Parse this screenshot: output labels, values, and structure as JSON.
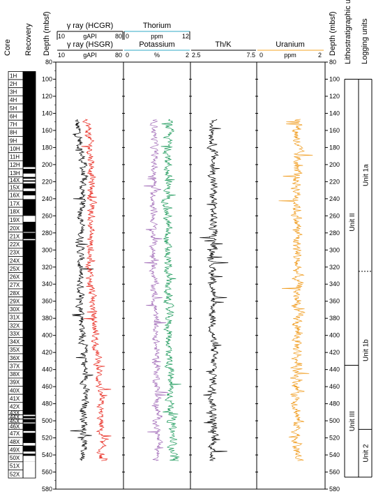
{
  "chart_data": {
    "type": "line",
    "title": "",
    "depth_label": "Depth (mbsf)",
    "depth_range": [
      80,
      580
    ],
    "depth_ticks": [
      80,
      100,
      120,
      140,
      160,
      180,
      200,
      220,
      240,
      260,
      280,
      300,
      320,
      340,
      360,
      380,
      400,
      420,
      440,
      460,
      480,
      500,
      520,
      540,
      560,
      580
    ],
    "data_depth_range": [
      147,
      547
    ],
    "columns": {
      "core": "Core",
      "recovery": "Recovery",
      "litho": "Lithostratigraphic units",
      "logging": "Logging units"
    },
    "tracks": [
      {
        "name": "gamma-ray",
        "headers": [
          {
            "label": "γ ray (HCGR)",
            "unit": "gAPI",
            "min": 10,
            "max": 80,
            "color": "#000000"
          },
          {
            "label": "γ ray (HSGR)",
            "unit": "gAPI",
            "min": 10,
            "max": 80,
            "color": "#000000"
          }
        ],
        "series": [
          {
            "label": "γ ray (HCGR)",
            "color": "#000000",
            "baseline": 38,
            "amplitude": 7,
            "trend": [
              [
                147,
                -8
              ],
              [
                200,
                0
              ],
              [
                330,
                -4
              ],
              [
                450,
                2
              ],
              [
                547,
                0
              ]
            ]
          },
          {
            "label": "γ ray (HSGR)",
            "color": "#e8261c",
            "baseline": 47,
            "amplitude": 7,
            "trend": [
              [
                147,
                -5
              ],
              [
                200,
                0
              ],
              [
                330,
                -2
              ],
              [
                450,
                8
              ],
              [
                547,
                10
              ]
            ]
          }
        ]
      },
      {
        "name": "potassium-thorium",
        "headers": [
          {
            "label": "Thorium",
            "unit": "ppm",
            "min": 0,
            "max": 12,
            "color": "#2fa8c4"
          },
          {
            "label": "Potassium",
            "unit": "%",
            "min": 0,
            "max": 2,
            "color": "#000000"
          }
        ],
        "series": [
          {
            "label": "Potassium",
            "color": "#1d9a5b",
            "baseline": 1.35,
            "amplitude": 0.22,
            "trend": [
              [
                147,
                0
              ],
              [
                300,
                -0.05
              ],
              [
                450,
                0.05
              ],
              [
                547,
                0.15
              ]
            ]
          },
          {
            "label": "Thorium",
            "color": "#a26cb8",
            "baseline": 5.6,
            "amplitude": 1.1,
            "trend": [
              [
                147,
                0
              ],
              [
                300,
                -0.3
              ],
              [
                450,
                0.4
              ],
              [
                547,
                0.6
              ]
            ]
          }
        ]
      },
      {
        "name": "th-k",
        "headers": [
          {
            "label": "Th/K",
            "unit": "",
            "min": 2.5,
            "max": 7.5,
            "color": "#000000"
          }
        ],
        "series": [
          {
            "label": "Th/K",
            "color": "#000000",
            "baseline": 4.2,
            "amplitude": 0.55,
            "trend": [
              [
                147,
                0
              ],
              [
                547,
                0
              ]
            ]
          }
        ]
      },
      {
        "name": "uranium",
        "headers": [
          {
            "label": "Uranium",
            "unit": "ppm",
            "min": 0,
            "max": 2,
            "color": "#f5a623"
          }
        ],
        "series": [
          {
            "label": "Uranium",
            "color": "#f09a1a",
            "baseline": 1.2,
            "amplitude": 0.28,
            "trend": [
              [
                147,
                0
              ],
              [
                547,
                0
              ]
            ]
          }
        ]
      }
    ],
    "cores": [
      {
        "id": "1H",
        "top": 91,
        "bottom": 100.5
      },
      {
        "id": "2H",
        "top": 100.5,
        "bottom": 110
      },
      {
        "id": "3H",
        "top": 110,
        "bottom": 119.5
      },
      {
        "id": "4H",
        "top": 119.5,
        "bottom": 129
      },
      {
        "id": "5H",
        "top": 129,
        "bottom": 138.5
      },
      {
        "id": "6H",
        "top": 138.5,
        "bottom": 148
      },
      {
        "id": "7H",
        "top": 148,
        "bottom": 157.5
      },
      {
        "id": "8H",
        "top": 157.5,
        "bottom": 167
      },
      {
        "id": "9H",
        "top": 167,
        "bottom": 176.5
      },
      {
        "id": "10H",
        "top": 176.5,
        "bottom": 186
      },
      {
        "id": "11H",
        "top": 186,
        "bottom": 195.5
      },
      {
        "id": "12H",
        "top": 195.5,
        "bottom": 205
      },
      {
        "id": "13H",
        "top": 205,
        "bottom": 214.5
      },
      {
        "id": "14X",
        "top": 214.5,
        "bottom": 222
      },
      {
        "id": "15X",
        "top": 222,
        "bottom": 231
      },
      {
        "id": "16X",
        "top": 231,
        "bottom": 240.5
      },
      {
        "id": "17X",
        "top": 240.5,
        "bottom": 250
      },
      {
        "id": "18X",
        "top": 250,
        "bottom": 260
      },
      {
        "id": "19X",
        "top": 260,
        "bottom": 269.5
      },
      {
        "id": "20X",
        "top": 269.5,
        "bottom": 279
      },
      {
        "id": "21X",
        "top": 279,
        "bottom": 288.5
      },
      {
        "id": "22X",
        "top": 288.5,
        "bottom": 298
      },
      {
        "id": "23X",
        "top": 298,
        "bottom": 307.5
      },
      {
        "id": "24X",
        "top": 307.5,
        "bottom": 317
      },
      {
        "id": "25X",
        "top": 317,
        "bottom": 326.5
      },
      {
        "id": "26X",
        "top": 326.5,
        "bottom": 336
      },
      {
        "id": "27X",
        "top": 336,
        "bottom": 345.5
      },
      {
        "id": "28X",
        "top": 345.5,
        "bottom": 355
      },
      {
        "id": "29X",
        "top": 355,
        "bottom": 364.5
      },
      {
        "id": "30X",
        "top": 364.5,
        "bottom": 374
      },
      {
        "id": "31X",
        "top": 374,
        "bottom": 383.5
      },
      {
        "id": "32X",
        "top": 383.5,
        "bottom": 393
      },
      {
        "id": "33X",
        "top": 393,
        "bottom": 402.5
      },
      {
        "id": "34X",
        "top": 402.5,
        "bottom": 412
      },
      {
        "id": "35X",
        "top": 412,
        "bottom": 421.5
      },
      {
        "id": "36X",
        "top": 421.5,
        "bottom": 431
      },
      {
        "id": "37X",
        "top": 431,
        "bottom": 440.5
      },
      {
        "id": "38X",
        "top": 440.5,
        "bottom": 450
      },
      {
        "id": "39X",
        "top": 450,
        "bottom": 459.5
      },
      {
        "id": "40X",
        "top": 459.5,
        "bottom": 469
      },
      {
        "id": "41X",
        "top": 469,
        "bottom": 478.5
      },
      {
        "id": "42X",
        "top": 478.5,
        "bottom": 488
      },
      {
        "id": "43X",
        "top": 488,
        "bottom": 493
      },
      {
        "id": "44X",
        "top": 493,
        "bottom": 498
      },
      {
        "id": "45X",
        "top": 498,
        "bottom": 503
      },
      {
        "id": "46X",
        "top": 503,
        "bottom": 510
      },
      {
        "id": "47X",
        "top": 510,
        "bottom": 519.5
      },
      {
        "id": "48X",
        "top": 519.5,
        "bottom": 529
      },
      {
        "id": "49X",
        "top": 529,
        "bottom": 538.5
      },
      {
        "id": "50X",
        "top": 538.5,
        "bottom": 548
      },
      {
        "id": "51X",
        "top": 548,
        "bottom": 557.5
      },
      {
        "id": "52X",
        "top": 557.5,
        "bottom": 567
      }
    ],
    "recovery_gaps": [
      [
        203,
        205
      ],
      [
        210.5,
        214.5
      ],
      [
        216.5,
        218.5
      ],
      [
        220,
        222
      ],
      [
        228,
        231
      ],
      [
        236,
        240.5
      ],
      [
        260,
        267
      ],
      [
        279,
        279.8
      ],
      [
        287.2,
        288.5
      ],
      [
        493,
        494.5
      ],
      [
        497,
        498
      ],
      [
        502,
        503
      ],
      [
        512,
        514
      ],
      [
        526,
        529
      ],
      [
        536,
        538.5
      ],
      [
        541,
        548
      ],
      [
        548,
        567
      ]
    ],
    "litho_units": [
      {
        "label": "Unit II",
        "top": 100,
        "bottom": 435
      },
      {
        "label": "Unit III",
        "top": 435,
        "bottom": 566
      }
    ],
    "logging_units": [
      {
        "label": "Unit 1a",
        "top": 100,
        "bottom": 325
      },
      {
        "label": "Unit 1b",
        "top": 325,
        "bottom": 510
      },
      {
        "label": "Unit 2",
        "top": 510,
        "bottom": 566
      }
    ]
  }
}
